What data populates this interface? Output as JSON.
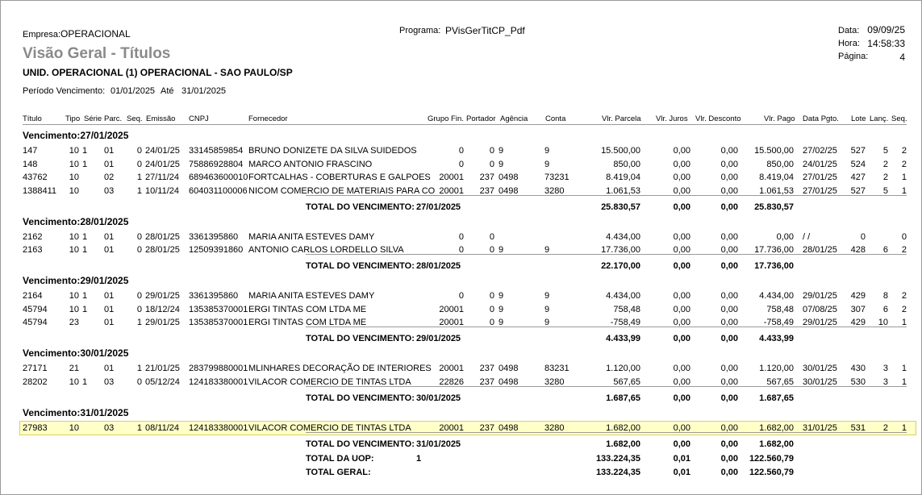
{
  "header": {
    "empresa_label": "Empresa:",
    "empresa": "OPERACIONAL",
    "programa_label": "Programa:",
    "programa": "PVisGerTitCP_Pdf",
    "title": "Visão Geral - Títulos",
    "unidade": "UNID. OPERACIONAL (1) OPERACIONAL - SAO PAULO/SP",
    "periodo_label": "Período Vencimento:",
    "periodo_inicio": "01/01/2025",
    "ate": "Até",
    "periodo_fim": "31/01/2025",
    "data_label": "Data:",
    "data": "09/09/25",
    "hora_label": "Hora:",
    "hora": "14:58:33",
    "pagina_label": "Página:",
    "pagina": "4"
  },
  "columns": [
    "Título",
    "Tipo",
    "Série",
    "Parc.",
    "Seq.",
    "Emissão",
    "CNPJ",
    "Fornecedor",
    "Grupo Fin.",
    "Portador",
    "Agência",
    "Conta",
    "Vlr. Parcela",
    "Vlr. Juros",
    "Vlr. Desconto",
    "Vlr. Pago",
    "Data Pgto.",
    "Lote",
    "Lanç.",
    "Seq."
  ],
  "groups": [
    {
      "title": "Vencimento:27/01/2025",
      "rows": [
        [
          "147",
          "10",
          "1",
          "01",
          "0",
          "24/01/25",
          "33145859854",
          "BRUNO DONIZETE DA SILVA SUIDEDOS",
          "0",
          "0",
          "9",
          "9",
          "15.500,00",
          "0,00",
          "0,00",
          "15.500,00",
          "27/02/25",
          "527",
          "5",
          "2"
        ],
        [
          "148",
          "10",
          "1",
          "01",
          "0",
          "24/01/25",
          "75886928804",
          "MARCO ANTONIO FRASCINO",
          "0",
          "0",
          "9",
          "9",
          "850,00",
          "0,00",
          "0,00",
          "850,00",
          "24/01/25",
          "524",
          "2",
          "2"
        ],
        [
          "43762",
          "10",
          null,
          "02",
          "1",
          "27/11/24",
          "689463600010",
          "FORTCALHAS - COBERTURAS E GALPOES",
          "20001",
          "237",
          "0498",
          "73231",
          "8.419,04",
          "0,00",
          "0,00",
          "8.419,04",
          "27/01/25",
          "427",
          "2",
          "1"
        ],
        [
          "1388411",
          "10",
          null,
          "03",
          "1",
          "10/11/24",
          "604031100006",
          "NICOM COMERCIO DE MATERIAIS PARA CO",
          "20001",
          "237",
          "0498",
          "3280",
          "1.061,53",
          "0,00",
          "0,00",
          "1.061,53",
          "27/01/25",
          "527",
          "5",
          "1"
        ]
      ],
      "total": {
        "label": "TOTAL DO VENCIMENTO:",
        "date": "27/01/2025",
        "values": [
          "25.830,57",
          "0,00",
          "0,00",
          "25.830,57"
        ]
      }
    },
    {
      "title": "Vencimento:28/01/2025",
      "rows": [
        [
          "2162",
          "10",
          "1",
          "01",
          "0",
          "28/01/25",
          "3361395860",
          "MARIA ANITA ESTEVES DAMY",
          "0",
          "0",
          null,
          null,
          "4.434,00",
          "0,00",
          "0,00",
          "0,00",
          "/ /",
          "0",
          null,
          "0"
        ],
        [
          "2163",
          "10",
          "1",
          "01",
          "0",
          "28/01/25",
          "12509391860",
          "ANTONIO CARLOS LORDELLO SILVA",
          "0",
          "0",
          "9",
          "9",
          "17.736,00",
          "0,00",
          "0,00",
          "17.736,00",
          "28/01/25",
          "428",
          "6",
          "2"
        ]
      ],
      "total": {
        "label": "TOTAL DO VENCIMENTO:",
        "date": "28/01/2025",
        "values": [
          "22.170,00",
          "0,00",
          "0,00",
          "17.736,00"
        ]
      }
    },
    {
      "title": "Vencimento:29/01/2025",
      "rows": [
        [
          "2164",
          "10",
          "1",
          "01",
          "0",
          "29/01/25",
          "3361395860",
          "MARIA ANITA ESTEVES DAMY",
          "0",
          "0",
          "9",
          "9",
          "4.434,00",
          "0,00",
          "0,00",
          "4.434,00",
          "29/01/25",
          "429",
          "8",
          "2"
        ],
        [
          "45794",
          "10",
          "1",
          "01",
          "0",
          "18/12/24",
          "135385370001",
          "ERGI TINTAS COM LTDA ME",
          "20001",
          "0",
          "9",
          "9",
          "758,48",
          "0,00",
          "0,00",
          "758,48",
          "07/08/25",
          "307",
          "6",
          "2"
        ],
        [
          "45794",
          "23",
          null,
          "01",
          "1",
          "29/01/25",
          "135385370001",
          "ERGI TINTAS COM LTDA ME",
          "20001",
          "0",
          "9",
          "9",
          "-758,49",
          "0,00",
          "0,00",
          "-758,49",
          "29/01/25",
          "429",
          "10",
          "1"
        ]
      ],
      "total": {
        "label": "TOTAL DO VENCIMENTO:",
        "date": "29/01/2025",
        "values": [
          "4.433,99",
          "0,00",
          "0,00",
          "4.433,99"
        ]
      }
    },
    {
      "title": "Vencimento:30/01/2025",
      "rows": [
        [
          "27171",
          "21",
          null,
          "01",
          "1",
          "21/01/25",
          "283799880001",
          "MLINHARES DECORAÇÃO DE INTERIORES",
          "20001",
          "237",
          "0498",
          "83231",
          "1.120,00",
          "0,00",
          "0,00",
          "1.120,00",
          "30/01/25",
          "430",
          "3",
          "1"
        ],
        [
          "28202",
          "10",
          "1",
          "03",
          "0",
          "05/12/24",
          "124183380001",
          "VILACOR COMERCIO DE TINTAS LTDA",
          "22826",
          "237",
          "0498",
          "3280",
          "567,65",
          "0,00",
          "0,00",
          "567,65",
          "30/01/25",
          "530",
          "3",
          "1"
        ]
      ],
      "total": {
        "label": "TOTAL DO VENCIMENTO:",
        "date": "30/01/2025",
        "values": [
          "1.687,65",
          "0,00",
          "0,00",
          "1.687,65"
        ]
      }
    },
    {
      "title": "Vencimento:31/01/2025",
      "rows": [
        [
          "27983",
          "10",
          null,
          "03",
          "1",
          "08/11/24",
          "124183380001",
          "VILACOR COMERCIO DE TINTAS LTDA",
          "20001",
          "237",
          "0498",
          "3280",
          "1.682,00",
          "0,00",
          "0,00",
          "1.682,00",
          "31/01/25",
          "531",
          "2",
          "1"
        ]
      ],
      "total": {
        "label": "TOTAL DO VENCIMENTO:",
        "date": "31/01/2025",
        "values": [
          "1.682,00",
          "0,00",
          "0,00",
          "1.682,00"
        ]
      }
    }
  ],
  "summary": [
    {
      "label": "TOTAL DA UOP:",
      "count": "1",
      "values": [
        "133.224,35",
        "0,01",
        "0,00",
        "122.560,79"
      ]
    },
    {
      "label": "TOTAL GERAL:",
      "values": [
        "133.224,35",
        "0,01",
        "0,00",
        "122.560,79"
      ]
    }
  ]
}
